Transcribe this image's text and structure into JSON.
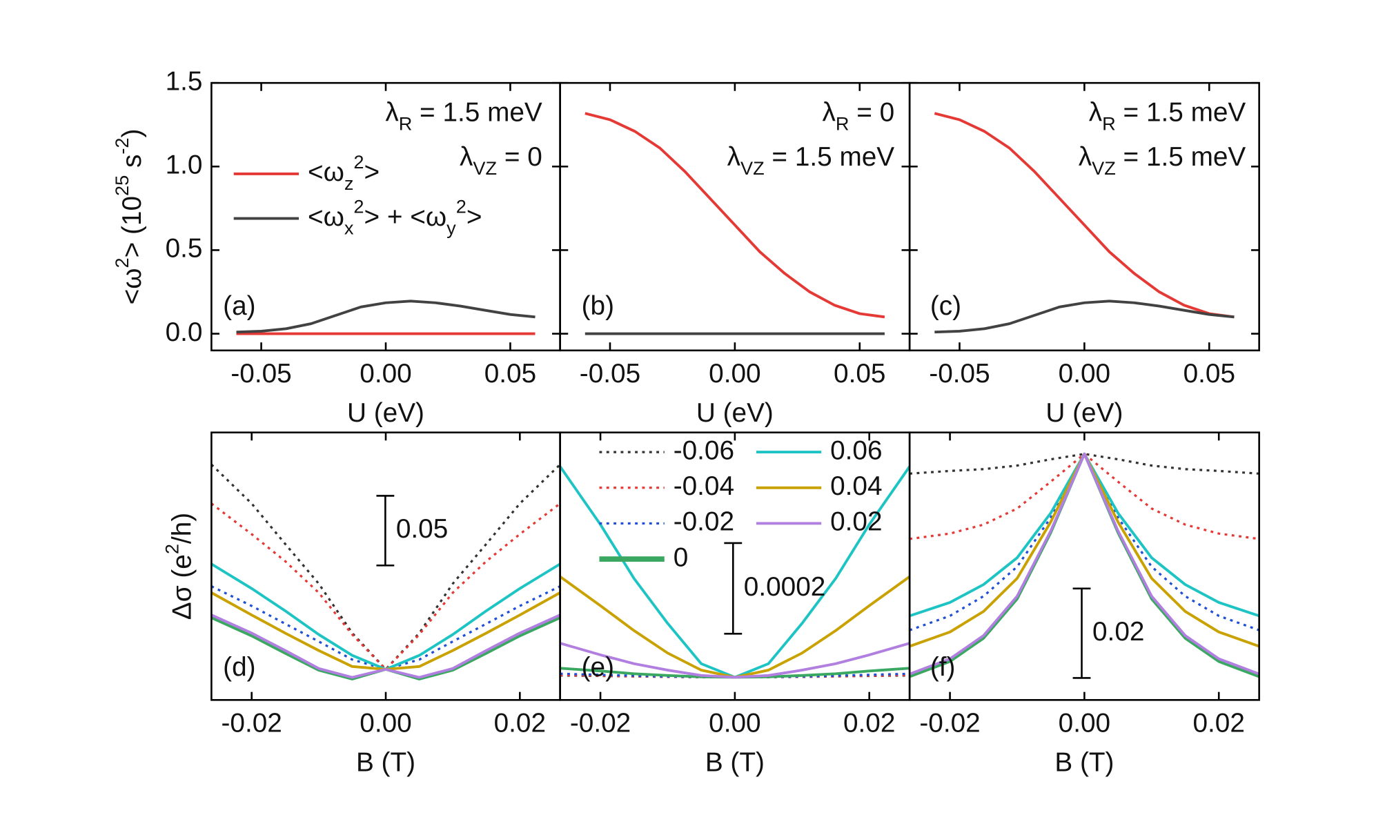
{
  "chart_data": [
    {
      "type": "line",
      "x": [
        -0.06,
        -0.05,
        -0.04,
        -0.03,
        -0.02,
        -0.01,
        0,
        0.01,
        0.02,
        0.03,
        0.04,
        0.05,
        0.06
      ],
      "xlim": [
        -0.07,
        0.07
      ],
      "xticks": [
        -0.05,
        {
          "value": 0,
          "label": "0.00"
        },
        0.05
      ],
      "xlabel": "U (eV)",
      "ylim": [
        -0.1,
        1.5
      ],
      "yticks": [
        {
          "value": 0,
          "label": "0.0"
        },
        0.5,
        {
          "value": 1,
          "label": "1.0"
        },
        1.5
      ],
      "ytick_labels": true,
      "ylabel": "<ω^2> (10^{25} s^{-2})",
      "annotations": [
        "(a)",
        "λ_R  = 1.5 meV",
        "λ_{VZ} = 0"
      ],
      "series": [
        {
          "name": "<ω_z^2>",
          "color": "#e53935",
          "values": [
            0,
            0,
            0,
            0,
            0,
            0,
            0,
            0,
            0,
            0,
            0,
            0,
            0
          ]
        },
        {
          "name": "<ω_x^2> + <ω_y^2>",
          "color": "#424242",
          "values": [
            0.01,
            0.015,
            0.03,
            0.06,
            0.11,
            0.16,
            0.185,
            0.195,
            0.185,
            0.165,
            0.14,
            0.115,
            0.1
          ]
        }
      ]
    },
    {
      "type": "line",
      "x": [
        -0.06,
        -0.05,
        -0.04,
        -0.03,
        -0.02,
        -0.01,
        0,
        0.01,
        0.02,
        0.03,
        0.04,
        0.05,
        0.06
      ],
      "xlim": [
        -0.07,
        0.07
      ],
      "xticks": [
        -0.05,
        {
          "value": 0,
          "label": "0.00"
        },
        0.05
      ],
      "xlabel": "U (eV)",
      "ylim": [
        -0.1,
        1.5
      ],
      "yticks": [
        0,
        0.5,
        1,
        1.5
      ],
      "ytick_labels": false,
      "annotations": [
        "(b)",
        "λ_R  = 0",
        "λ_{VZ} = 1.5 meV"
      ],
      "series": [
        {
          "color": "#e53935",
          "values": [
            1.318,
            1.28,
            1.21,
            1.11,
            0.97,
            0.81,
            0.65,
            0.49,
            0.36,
            0.25,
            0.17,
            0.12,
            0.1
          ]
        },
        {
          "color": "#424242",
          "values": [
            0,
            0,
            0,
            0,
            0,
            0,
            0,
            0,
            0,
            0,
            0,
            0,
            0
          ]
        }
      ]
    },
    {
      "type": "line",
      "x": [
        -0.06,
        -0.05,
        -0.04,
        -0.03,
        -0.02,
        -0.01,
        0,
        0.01,
        0.02,
        0.03,
        0.04,
        0.05,
        0.06
      ],
      "xlim": [
        -0.07,
        0.07
      ],
      "xticks": [
        -0.05,
        {
          "value": 0,
          "label": "0.00"
        },
        0.05
      ],
      "xlabel": "U (eV)",
      "ylim": [
        -0.1,
        1.5
      ],
      "yticks": [
        0,
        0.5,
        1,
        1.5
      ],
      "ytick_labels": false,
      "annotations": [
        "(c)",
        "λ_R  = 1.5 meV",
        "λ_{VZ} = 1.5 meV"
      ],
      "series": [
        {
          "color": "#e53935",
          "values": [
            1.318,
            1.28,
            1.21,
            1.11,
            0.97,
            0.81,
            0.65,
            0.49,
            0.36,
            0.25,
            0.17,
            0.12,
            0.1
          ]
        },
        {
          "color": "#424242",
          "values": [
            0.01,
            0.015,
            0.03,
            0.06,
            0.11,
            0.16,
            0.185,
            0.195,
            0.185,
            0.165,
            0.14,
            0.115,
            0.1
          ]
        }
      ]
    },
    {
      "type": "line",
      "x": [
        -0.026,
        -0.02,
        -0.015,
        -0.01,
        -0.005,
        0,
        0.005,
        0.01,
        0.015,
        0.02,
        0.026
      ],
      "xlim": [
        -0.026,
        0.026
      ],
      "xticks": [
        -0.02,
        {
          "value": 0,
          "label": "0.00"
        },
        0.02
      ],
      "xlabel": "B (T)",
      "ylim": [
        -0.022,
        0.17
      ],
      "ylabel": "Δσ (e^2/h)",
      "scale_bar": 0.05,
      "annotations": [
        "(d)"
      ],
      "series": [
        {
          "color": "#333333",
          "line_style": "dotted",
          "values": [
            0.147,
            0.119,
            0.09,
            0.0615,
            0.026,
            0,
            0.026,
            0.0615,
            0.09,
            0.119,
            0.147
          ]
        },
        {
          "color": "#e53935",
          "line_style": "dotted",
          "values": [
            0.119,
            0.097,
            0.0776,
            0.055,
            0.025,
            0,
            0.025,
            0.055,
            0.0776,
            0.097,
            0.119
          ]
        },
        {
          "color": "#1f4fd6",
          "line_style": "dotted",
          "values": [
            0.0596,
            0.0455,
            0.0327,
            0.02,
            0.007,
            0,
            0.007,
            0.02,
            0.0327,
            0.0455,
            0.0596
          ]
        },
        {
          "color": "#3aa860",
          "values": [
            0.037,
            0.024,
            0.0115,
            -0.0006,
            -0.007,
            0,
            -0.007,
            -0.0006,
            0.0115,
            0.024,
            0.037
          ]
        },
        {
          "color": "#1ec4c4",
          "values": [
            0.0756,
            0.058,
            0.042,
            0.025,
            0.01,
            0,
            0.01,
            0.025,
            0.042,
            0.058,
            0.0756
          ]
        },
        {
          "color": "#c9a100",
          "values": [
            0.055,
            0.039,
            0.026,
            0.0135,
            0.002,
            0,
            0.002,
            0.0135,
            0.026,
            0.039,
            0.055
          ]
        },
        {
          "color": "#b07fe0",
          "values": [
            0.039,
            0.026,
            0.0135,
            0.0006,
            -0.0058,
            0,
            -0.0058,
            0.0006,
            0.0135,
            0.026,
            0.039
          ]
        }
      ]
    },
    {
      "type": "line",
      "x": [
        -0.026,
        -0.02,
        -0.015,
        -0.01,
        -0.005,
        0,
        0.005,
        0.01,
        0.015,
        0.02,
        0.026
      ],
      "xlim": [
        -0.026,
        0.026
      ],
      "xticks": [
        -0.02,
        {
          "value": 0,
          "label": "0.00"
        },
        0.02
      ],
      "xlabel": "B (T)",
      "ylim": [
        -5e-05,
        0.00054
      ],
      "scale_bar": 0.0002,
      "annotations": [
        "(e)"
      ],
      "series": [
        {
          "name": "-0.06",
          "color": "#333333",
          "line_style": "dotted",
          "values": [
            4e-06,
            3e-06,
            2e-06,
            1e-06,
            3e-07,
            0,
            3e-07,
            1e-06,
            2e-06,
            3e-06,
            4e-06
          ]
        },
        {
          "name": "-0.04",
          "color": "#e53935",
          "line_style": "dotted",
          "values": [
            5e-06,
            3.5e-06,
            2.2e-06,
            1.1e-06,
            3e-07,
            0,
            3e-07,
            1.1e-06,
            2.2e-06,
            3.5e-06,
            5e-06
          ]
        },
        {
          "name": "-0.02",
          "color": "#1f4fd6",
          "line_style": "dotted",
          "values": [
            7.9e-06,
            5.5e-06,
            3.5e-06,
            1.6e-06,
            5e-07,
            0,
            5e-07,
            1.6e-06,
            3.5e-06,
            5.5e-06,
            7.9e-06
          ]
        },
        {
          "name": "0",
          "color": "#3aa860",
          "values": [
            2e-05,
            1.39e-05,
            7.9e-06,
            4e-06,
            1e-06,
            0,
            1e-06,
            4e-06,
            7.9e-06,
            1.39e-05,
            2e-05
          ]
        },
        {
          "name": "0.06",
          "color": "#1ec4c4",
          "values": [
            0.000465,
            0.000337,
            0.000218,
            0.000119,
            3e-05,
            0,
            3e-05,
            0.000119,
            0.000218,
            0.000337,
            0.000465
          ]
        },
        {
          "name": "0.04",
          "color": "#c9a100",
          "values": [
            0.000222,
            0.000158,
            0.000103,
            5.35e-05,
            1.58e-05,
            0,
            1.58e-05,
            5.35e-05,
            0.000103,
            0.000158,
            0.000222
          ]
        },
        {
          "name": "0.02",
          "color": "#b07fe0",
          "values": [
            7.52e-05,
            4.95e-05,
            3e-05,
            1.58e-05,
            4e-06,
            0,
            4e-06,
            1.58e-05,
            3e-05,
            4.95e-05,
            7.52e-05
          ]
        }
      ]
    },
    {
      "type": "line",
      "x": [
        -0.026,
        -0.02,
        -0.015,
        -0.01,
        -0.005,
        0,
        0.005,
        0.01,
        0.015,
        0.02,
        0.026
      ],
      "xlim": [
        -0.026,
        0.026
      ],
      "xticks": [
        -0.02,
        {
          "value": 0,
          "label": "0.00"
        },
        0.02
      ],
      "xlabel": "B (T)",
      "ylim": [
        -0.055,
        0.0048
      ],
      "scale_bar": 0.02,
      "annotations": [
        "(f)"
      ],
      "series": [
        {
          "color": "#333333",
          "line_style": "dotted",
          "values": [
            -0.0044,
            -0.0038,
            -0.0034,
            -0.0026,
            -0.0012,
            0,
            -0.0012,
            -0.0026,
            -0.0034,
            -0.0038,
            -0.0044
          ]
        },
        {
          "color": "#e53935",
          "line_style": "dotted",
          "values": [
            -0.019,
            -0.0178,
            -0.0158,
            -0.0122,
            -0.0062,
            0,
            -0.0062,
            -0.0122,
            -0.0158,
            -0.0178,
            -0.019
          ]
        },
        {
          "color": "#1f4fd6",
          "line_style": "dotted",
          "values": [
            -0.0394,
            -0.0362,
            -0.0318,
            -0.0252,
            -0.0142,
            0,
            -0.0142,
            -0.0252,
            -0.0318,
            -0.0362,
            -0.0394
          ]
        },
        {
          "color": "#3aa860",
          "values": [
            -0.0498,
            -0.0464,
            -0.0412,
            -0.0324,
            -0.0176,
            0,
            -0.0176,
            -0.0324,
            -0.0412,
            -0.0464,
            -0.0498
          ]
        },
        {
          "color": "#1ec4c4",
          "values": [
            -0.0362,
            -0.0332,
            -0.0292,
            -0.0232,
            -0.0132,
            0,
            -0.0132,
            -0.0232,
            -0.0292,
            -0.0332,
            -0.0362
          ]
        },
        {
          "color": "#c9a100",
          "values": [
            -0.043,
            -0.0398,
            -0.0352,
            -0.0278,
            -0.0152,
            0,
            -0.0152,
            -0.0278,
            -0.0352,
            -0.0398,
            -0.043
          ]
        },
        {
          "color": "#b07fe0",
          "values": [
            -0.0492,
            -0.0458,
            -0.0406,
            -0.0318,
            -0.0172,
            0,
            -0.0172,
            -0.0318,
            -0.0406,
            -0.0458,
            -0.0492
          ]
        }
      ]
    }
  ]
}
